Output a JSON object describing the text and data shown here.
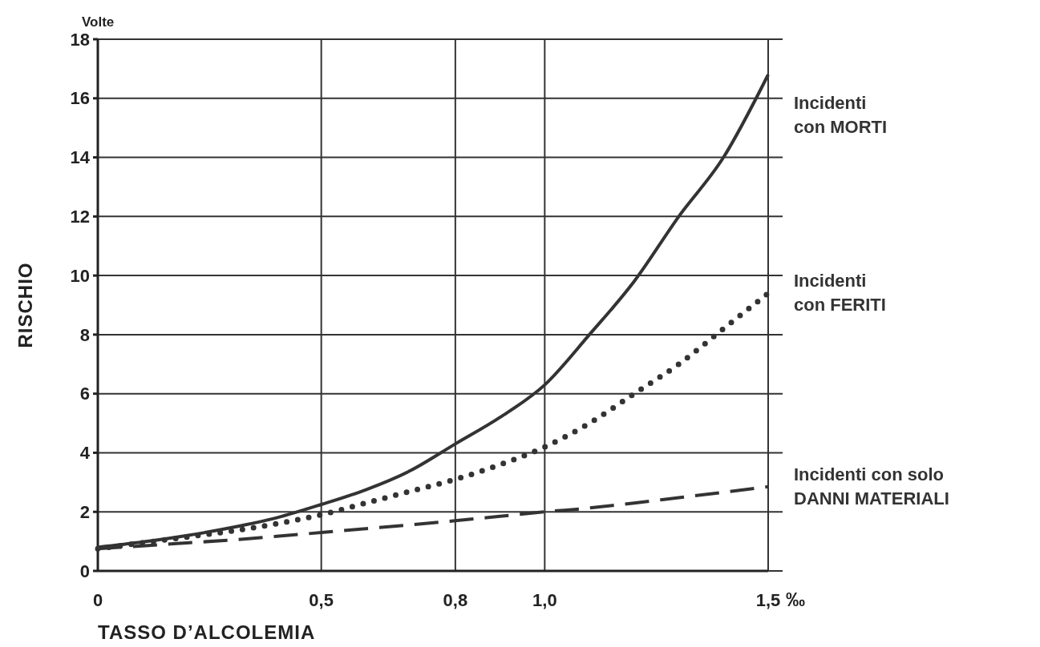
{
  "chart_data": {
    "type": "line",
    "xlabel": "TASSO D’ALCOLEMIA",
    "ylabel": "RISCHIO",
    "annotations": [
      "Volte",
      "‰"
    ],
    "x": [
      0,
      0.1,
      0.2,
      0.3,
      0.4,
      0.5,
      0.6,
      0.7,
      0.8,
      0.9,
      1.0,
      1.1,
      1.2,
      1.3,
      1.4,
      1.5
    ],
    "series": [
      {
        "name": "Incidenti\ncon MORTI",
        "color": "#333333",
        "line_style": "solid",
        "values": [
          0.8,
          0.98,
          1.2,
          1.47,
          1.8,
          2.25,
          2.75,
          3.4,
          4.3,
          5.2,
          6.3,
          8.0,
          9.8,
          12.0,
          14.0,
          16.8
        ]
      },
      {
        "name": "Incidenti\ncon FERITI",
        "color": "#333333",
        "line_style": "dotted",
        "values": [
          0.75,
          0.95,
          1.15,
          1.35,
          1.6,
          1.9,
          2.3,
          2.7,
          3.1,
          3.6,
          4.2,
          5.0,
          6.0,
          7.0,
          8.2,
          9.4
        ]
      },
      {
        "name": "Incidenti con solo\nDANNI MATERIALI",
        "color": "#333333",
        "line_style": "dashed",
        "values": [
          0.75,
          0.85,
          0.95,
          1.05,
          1.17,
          1.3,
          1.43,
          1.56,
          1.7,
          1.85,
          2.0,
          2.13,
          2.3,
          2.48,
          2.66,
          2.85
        ]
      }
    ],
    "xlim": [
      0,
      1.5
    ],
    "xticks": [
      {
        "value": 0,
        "label": "0"
      },
      {
        "value": 0.5,
        "label": "0,5"
      },
      {
        "value": 0.8,
        "label": "0,8"
      },
      {
        "value": 1.0,
        "label": "1,0"
      },
      {
        "value": 1.5,
        "label": "1,5"
      }
    ],
    "ylim": [
      0,
      18
    ],
    "yticks": [
      0,
      2,
      4,
      6,
      8,
      10,
      12,
      14,
      16,
      18
    ],
    "grid": true,
    "marker": "none"
  }
}
